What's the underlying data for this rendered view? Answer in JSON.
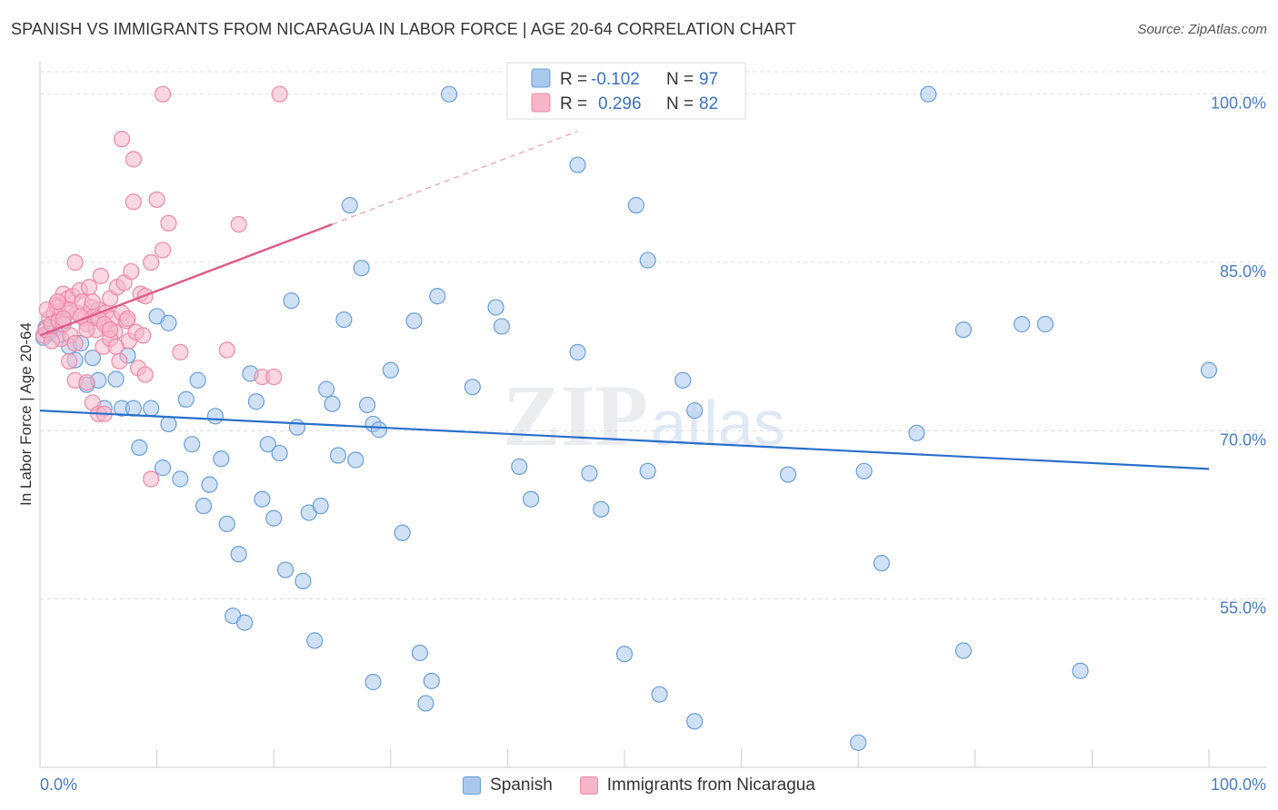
{
  "title": "SPANISH VS IMMIGRANTS FROM NICARAGUA IN LABOR FORCE | AGE 20-64 CORRELATION CHART",
  "source": "Source: ZipAtlas.com",
  "watermark": {
    "zip": "ZIP",
    "atlas": "atlas"
  },
  "colors": {
    "blue_fill": "#aac8ee",
    "blue_stroke": "#6a9fd8",
    "blue_line": "#2a6fcc",
    "pink_fill": "#f6b6c9",
    "pink_stroke": "#ee88a8",
    "pink_line": "#e05a8a",
    "axis_label": "#4a7bc8",
    "grid": "#dddddd"
  },
  "stats_legend": [
    {
      "series": "Spanish",
      "r_label": "R =",
      "r_value": "-0.102",
      "n_label": "N =",
      "n_value": "97"
    },
    {
      "series": "Immigrants from Nicaragua",
      "r_label": "R =",
      "r_value": "0.296",
      "n_label": "N =",
      "n_value": "82"
    }
  ],
  "chart_data": {
    "type": "scatter",
    "title": "SPANISH VS IMMIGRANTS FROM NICARAGUA IN LABOR FORCE | AGE 20-64 CORRELATION CHART",
    "xlabel": "",
    "ylabel": "In Labor Force | Age 20-64",
    "xlim": [
      0,
      100
    ],
    "ylim": [
      40,
      102
    ],
    "x_tick_labels": [
      "0.0%",
      "100.0%"
    ],
    "y_ticks": [
      55,
      70,
      85,
      100
    ],
    "y_tick_labels": [
      "55.0%",
      "70.0%",
      "85.0%",
      "100.0%"
    ],
    "series": [
      {
        "name": "Spanish",
        "color": "#6a9fd8",
        "trend": {
          "x0": 0,
          "y0": 71.8,
          "x1": 100,
          "y1": 66.6
        },
        "points": [
          [
            0.3,
            78.3
          ],
          [
            0.5,
            79.2
          ],
          [
            0.8,
            78.8
          ],
          [
            1,
            79.5
          ],
          [
            1.2,
            79.0
          ],
          [
            1.5,
            78.5
          ],
          [
            2,
            79.8
          ],
          [
            2.5,
            77.5
          ],
          [
            3,
            76.3
          ],
          [
            3.5,
            77.8
          ],
          [
            4,
            74.1
          ],
          [
            4.5,
            76.5
          ],
          [
            5,
            74.5
          ],
          [
            5.5,
            72.0
          ],
          [
            6.5,
            74.6
          ],
          [
            7,
            72.0
          ],
          [
            7.5,
            76.7
          ],
          [
            8,
            72.0
          ],
          [
            8.5,
            68.5
          ],
          [
            9.5,
            72.0
          ],
          [
            10,
            80.2
          ],
          [
            10.5,
            66.7
          ],
          [
            11,
            70.6
          ],
          [
            11,
            79.6
          ],
          [
            12,
            65.7
          ],
          [
            12.5,
            72.8
          ],
          [
            13,
            68.8
          ],
          [
            13.5,
            74.5
          ],
          [
            14,
            63.3
          ],
          [
            14.5,
            65.2
          ],
          [
            15,
            71.3
          ],
          [
            15.5,
            67.5
          ],
          [
            16,
            61.7
          ],
          [
            16.5,
            53.5
          ],
          [
            17,
            59.0
          ],
          [
            17.5,
            52.9
          ],
          [
            18,
            75.1
          ],
          [
            18.5,
            72.6
          ],
          [
            19,
            63.9
          ],
          [
            19.5,
            68.8
          ],
          [
            20,
            62.2
          ],
          [
            20.5,
            68.0
          ],
          [
            21,
            57.6
          ],
          [
            21.5,
            81.6
          ],
          [
            22,
            70.3
          ],
          [
            22.5,
            56.6
          ],
          [
            23,
            62.7
          ],
          [
            23.5,
            51.3
          ],
          [
            24,
            63.3
          ],
          [
            24.5,
            73.7
          ],
          [
            25,
            72.4
          ],
          [
            25.5,
            67.8
          ],
          [
            26,
            79.9
          ],
          [
            26.5,
            90.1
          ],
          [
            27,
            67.4
          ],
          [
            27.5,
            84.5
          ],
          [
            28,
            72.3
          ],
          [
            28.5,
            47.6
          ],
          [
            28.5,
            70.6
          ],
          [
            29,
            70.1
          ],
          [
            30,
            75.4
          ],
          [
            31,
            60.9
          ],
          [
            32,
            79.8
          ],
          [
            32.5,
            50.2
          ],
          [
            33,
            45.7
          ],
          [
            33.5,
            47.7
          ],
          [
            34,
            82.0
          ],
          [
            35,
            100.0
          ],
          [
            37,
            73.9
          ],
          [
            39,
            81.0
          ],
          [
            39.5,
            79.3
          ],
          [
            41,
            66.8
          ],
          [
            42,
            63.9
          ],
          [
            46,
            77.0
          ],
          [
            46,
            93.7
          ],
          [
            47,
            66.2
          ],
          [
            48,
            63.0
          ],
          [
            50,
            50.1
          ],
          [
            51,
            90.1
          ],
          [
            52,
            66.4
          ],
          [
            52,
            85.2
          ],
          [
            53,
            46.5
          ],
          [
            55,
            74.5
          ],
          [
            56,
            71.8
          ],
          [
            56,
            44.1
          ],
          [
            64,
            66.1
          ],
          [
            70,
            42.2
          ],
          [
            70.5,
            66.4
          ],
          [
            72,
            58.2
          ],
          [
            75,
            69.8
          ],
          [
            76,
            100.0
          ],
          [
            79,
            50.4
          ],
          [
            79,
            79.0
          ],
          [
            84,
            79.5
          ],
          [
            86,
            79.5
          ],
          [
            89,
            48.6
          ],
          [
            100,
            75.4
          ]
        ]
      },
      {
        "name": "Immigrants from Nicaragua",
        "color": "#ee88a8",
        "trend": {
          "x0": 0,
          "y0": 78.5,
          "x1": 25,
          "y1": 88.4,
          "dashed_to": {
            "x": 46,
            "y": 96.7
          }
        },
        "points": [
          [
            0.3,
            78.5
          ],
          [
            0.5,
            79.0
          ],
          [
            0.8,
            80.0
          ],
          [
            1,
            79.5
          ],
          [
            1.2,
            80.5
          ],
          [
            1.4,
            81.2
          ],
          [
            1.6,
            79.8
          ],
          [
            1.8,
            78.2
          ],
          [
            2,
            82.2
          ],
          [
            2.2,
            80.8
          ],
          [
            2.4,
            81.8
          ],
          [
            2.6,
            78.5
          ],
          [
            2.8,
            82.0
          ],
          [
            3,
            85.0
          ],
          [
            3.2,
            80.5
          ],
          [
            3.4,
            82.5
          ],
          [
            3.6,
            81.5
          ],
          [
            3.8,
            80.0
          ],
          [
            4,
            79.5
          ],
          [
            4.2,
            82.8
          ],
          [
            4.4,
            81.0
          ],
          [
            4.6,
            80.2
          ],
          [
            4.8,
            79.0
          ],
          [
            5,
            80.8
          ],
          [
            5.2,
            83.8
          ],
          [
            5.4,
            77.5
          ],
          [
            5.6,
            80.5
          ],
          [
            5.8,
            79.2
          ],
          [
            6,
            81.8
          ],
          [
            6.2,
            80.0
          ],
          [
            6.4,
            78.8
          ],
          [
            6.6,
            82.8
          ],
          [
            6.8,
            76.2
          ],
          [
            7,
            80.5
          ],
          [
            7.2,
            83.2
          ],
          [
            7.4,
            79.8
          ],
          [
            7.6,
            78.0
          ],
          [
            7.8,
            84.2
          ],
          [
            8,
            90.4
          ],
          [
            8.2,
            78.8
          ],
          [
            8.4,
            75.6
          ],
          [
            8.6,
            82.2
          ],
          [
            8.8,
            78.5
          ],
          [
            9,
            75.0
          ],
          [
            9.5,
            65.7
          ],
          [
            10,
            90.6
          ],
          [
            10.5,
            86.1
          ],
          [
            11,
            88.5
          ],
          [
            2.5,
            76.2
          ],
          [
            3,
            74.5
          ],
          [
            4,
            74.3
          ],
          [
            4.5,
            72.5
          ],
          [
            5,
            71.5
          ],
          [
            5.5,
            71.5
          ],
          [
            6,
            78.2
          ],
          [
            6.5,
            77.5
          ],
          [
            7,
            96.0
          ],
          [
            7.5,
            80.0
          ],
          [
            8,
            94.2
          ],
          [
            9,
            82.0
          ],
          [
            1.5,
            81.0
          ],
          [
            2,
            79.5
          ],
          [
            2.5,
            80.8
          ],
          [
            3,
            77.8
          ],
          [
            3.5,
            80.2
          ],
          [
            4,
            79.0
          ],
          [
            4.5,
            81.5
          ],
          [
            5,
            80.0
          ],
          [
            5.5,
            79.5
          ],
          [
            6,
            79.0
          ],
          [
            12,
            77.0
          ],
          [
            16,
            77.2
          ],
          [
            17,
            88.4
          ],
          [
            19,
            74.8
          ],
          [
            20,
            74.8
          ],
          [
            0.6,
            80.8
          ],
          [
            1,
            78.0
          ],
          [
            1.5,
            81.5
          ],
          [
            2,
            80.0
          ],
          [
            10.5,
            100.0
          ],
          [
            20.5,
            100.0
          ],
          [
            9.5,
            85.0
          ]
        ]
      }
    ]
  }
}
